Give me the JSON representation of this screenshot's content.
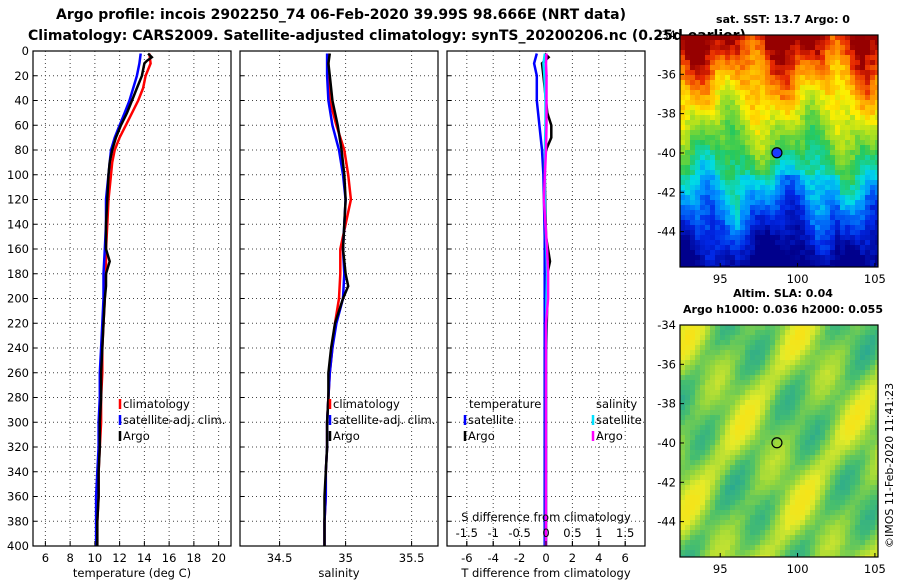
{
  "title": {
    "line1": "Argo profile: incois 2902250_74 06-Feb-2020 39.99S 98.666E (NRT data)",
    "line2": "Climatology: CARS2009. Satellite-adjusted climatology: synTS_20200206.nc (0.25d earlier)"
  },
  "colors": {
    "climatology": "#ff0000",
    "satellite": "#0000ff",
    "argo": "#000000",
    "salinity_satellite": "#00e0ff",
    "salinity_argo": "#ff00ff"
  },
  "chart_data": [
    {
      "id": "temperature",
      "type": "line",
      "xlabel": "temperature (deg C)",
      "ylabel": "depth",
      "xlim": [
        5,
        21
      ],
      "ylim": [
        400,
        0
      ],
      "xticks": [
        6,
        8,
        10,
        12,
        14,
        16,
        18,
        20
      ],
      "xtick_labels": [
        "6",
        "8",
        "10",
        "12",
        "14",
        "16",
        "18",
        "20"
      ],
      "yticks": [
        0,
        20,
        40,
        60,
        80,
        100,
        120,
        140,
        160,
        180,
        200,
        220,
        240,
        260,
        280,
        300,
        320,
        340,
        360,
        380,
        400
      ],
      "ytick_labels": [
        "0",
        "20",
        "40",
        "60",
        "80",
        "100",
        "120",
        "140",
        "160",
        "180",
        "200",
        "220",
        "240",
        "260",
        "280",
        "300",
        "320",
        "340",
        "360",
        "380",
        "400"
      ],
      "grid": true,
      "legend": [
        "climatology",
        "satellite-adj. clim.",
        "Argo"
      ],
      "series": [
        {
          "name": "climatology",
          "color": "#ff0000",
          "depth": [
            2,
            10,
            20,
            30,
            40,
            50,
            60,
            70,
            80,
            90,
            100,
            120,
            140,
            160,
            180,
            200,
            220,
            240,
            260,
            280,
            300,
            320,
            340,
            360,
            380,
            400
          ],
          "values": [
            14.4,
            14.5,
            14.1,
            13.9,
            13.5,
            13.0,
            12.5,
            12.0,
            11.6,
            11.4,
            11.3,
            11.1,
            11.0,
            10.9,
            10.9,
            10.8,
            10.7,
            10.6,
            10.6,
            10.5,
            10.5,
            10.4,
            10.3,
            10.3,
            10.2,
            10.2
          ]
        },
        {
          "name": "satellite-adj. clim.",
          "color": "#0000ff",
          "depth": [
            2,
            10,
            20,
            30,
            40,
            50,
            60,
            70,
            80,
            90,
            100,
            120,
            140,
            160,
            180,
            200,
            220,
            240,
            260,
            280,
            300,
            320,
            340,
            360,
            380,
            400
          ],
          "values": [
            13.7,
            13.6,
            13.4,
            13.1,
            12.8,
            12.4,
            12.0,
            11.6,
            11.3,
            11.2,
            11.1,
            10.9,
            10.9,
            10.8,
            10.7,
            10.7,
            10.6,
            10.5,
            10.4,
            10.4,
            10.3,
            10.3,
            10.2,
            10.1,
            10.1,
            10.1
          ]
        },
        {
          "name": "Argo",
          "color": "#000000",
          "depth": [
            2,
            5,
            8,
            10,
            20,
            30,
            40,
            50,
            60,
            70,
            80,
            90,
            100,
            120,
            140,
            160,
            170,
            180,
            190,
            200,
            220,
            240,
            260,
            280,
            300,
            320,
            340,
            360,
            380,
            400
          ],
          "values": [
            14.3,
            14.6,
            14.2,
            14.0,
            13.8,
            13.4,
            13.0,
            12.6,
            12.1,
            11.7,
            11.4,
            11.2,
            11.1,
            11.0,
            10.9,
            10.9,
            11.2,
            10.9,
            10.9,
            10.8,
            10.7,
            10.6,
            10.5,
            10.5,
            10.4,
            10.4,
            10.3,
            10.3,
            10.2,
            10.2
          ]
        }
      ]
    },
    {
      "id": "salinity",
      "type": "line",
      "xlabel": "salinity",
      "ylabel": "depth",
      "xlim": [
        34.2,
        35.7
      ],
      "ylim": [
        400,
        0
      ],
      "xticks": [
        34.5,
        35,
        35.5
      ],
      "xtick_labels": [
        "34.5",
        "35",
        "35.5"
      ],
      "grid": true,
      "legend": [
        "climatology",
        "satellite-adj. clim.",
        "Argo"
      ],
      "series": [
        {
          "name": "climatology",
          "color": "#ff0000",
          "depth": [
            2,
            20,
            40,
            60,
            80,
            100,
            120,
            140,
            160,
            180,
            200,
            220,
            240,
            260,
            280,
            300,
            320,
            340,
            360,
            380,
            400
          ],
          "values": [
            34.87,
            34.87,
            34.88,
            34.93,
            34.99,
            35.02,
            35.04,
            35.0,
            34.96,
            34.96,
            34.95,
            34.92,
            34.9,
            34.88,
            34.87,
            34.86,
            34.86,
            34.85,
            34.85,
            34.84,
            34.84
          ]
        },
        {
          "name": "satellite-adj. clim.",
          "color": "#0000ff",
          "depth": [
            2,
            20,
            40,
            60,
            80,
            100,
            120,
            140,
            160,
            180,
            200,
            220,
            240,
            260,
            280,
            300,
            320,
            340,
            360,
            380,
            400
          ],
          "values": [
            34.86,
            34.86,
            34.87,
            34.9,
            34.95,
            34.98,
            35.0,
            34.99,
            34.98,
            34.99,
            34.98,
            34.93,
            34.9,
            34.88,
            34.87,
            34.86,
            34.86,
            34.85,
            34.85,
            34.84,
            34.84
          ]
        },
        {
          "name": "Argo",
          "color": "#000000",
          "depth": [
            2,
            10,
            20,
            40,
            60,
            80,
            100,
            120,
            140,
            160,
            180,
            190,
            200,
            220,
            240,
            260,
            280,
            300,
            320,
            340,
            360,
            380,
            400
          ],
          "values": [
            34.88,
            34.87,
            34.88,
            34.9,
            34.94,
            34.97,
            34.99,
            35.0,
            34.99,
            34.98,
            35.0,
            35.02,
            34.98,
            34.92,
            34.89,
            34.87,
            34.87,
            34.86,
            34.86,
            34.85,
            34.84,
            34.84,
            34.84
          ]
        }
      ]
    },
    {
      "id": "difference",
      "type": "line",
      "xlabel": "T difference from climatology",
      "xlabel_top": "S difference from climatology",
      "ylabel": "depth",
      "xlim": [
        -7.5,
        7.5
      ],
      "ylim": [
        400,
        0
      ],
      "xticks": [
        -6,
        -4,
        -2,
        0,
        2,
        4,
        6
      ],
      "xtick_labels": [
        "-6",
        "-4",
        "-2",
        "0",
        "2",
        "4",
        "6"
      ],
      "sticks": [
        -1.5,
        -1,
        -0.5,
        0,
        0.5,
        1,
        1.5
      ],
      "stick_labels": [
        "-1.5",
        "-1",
        "-0.5",
        "0",
        "0.5",
        "1",
        "1.5"
      ],
      "grid": true,
      "legend": {
        "temperature_header": "temperature",
        "salinity_header": "salinity",
        "temperature": [
          "satellite",
          "Argo"
        ],
        "salinity": [
          "satellite",
          "Argo"
        ]
      },
      "series": [
        {
          "name": "temperature satellite",
          "color": "#0000ff",
          "depth": [
            2,
            10,
            20,
            40,
            60,
            80,
            100,
            150,
            200,
            300,
            400
          ],
          "values": [
            -0.7,
            -0.9,
            -0.7,
            -0.7,
            -0.5,
            -0.3,
            -0.2,
            -0.1,
            -0.1,
            -0.1,
            -0.1
          ]
        },
        {
          "name": "temperature Argo",
          "color": "#000000",
          "depth": [
            2,
            5,
            10,
            20,
            30,
            40,
            50,
            60,
            70,
            80,
            90,
            100,
            150,
            170,
            180,
            200,
            250,
            300,
            350,
            400
          ],
          "values": [
            -0.1,
            0.2,
            -0.3,
            -0.2,
            -0.1,
            0.0,
            0.1,
            0.4,
            0.4,
            0.0,
            -0.1,
            -0.1,
            0.0,
            0.3,
            0.1,
            0.1,
            0.0,
            0.0,
            0.0,
            0.0
          ]
        },
        {
          "name": "salinity satellite",
          "color": "#00e0ff",
          "depth": [
            2,
            10,
            20,
            40,
            60,
            80,
            100,
            120,
            140,
            160,
            180,
            200,
            250,
            300,
            400
          ],
          "values": [
            -0.02,
            -0.05,
            -0.03,
            -0.01,
            -0.01,
            -0.02,
            -0.02,
            -0.02,
            -0.01,
            0.01,
            0.02,
            0.01,
            0.0,
            0.0,
            0.0
          ]
        },
        {
          "name": "salinity Argo",
          "color": "#ff00ff",
          "depth": [
            2,
            10,
            20,
            40,
            60,
            80,
            100,
            120,
            140,
            160,
            180,
            200,
            220,
            250,
            300,
            350,
            400
          ],
          "values": [
            0.01,
            0.0,
            0.01,
            0.01,
            0.01,
            0.0,
            -0.02,
            -0.04,
            -0.01,
            0.02,
            0.04,
            0.04,
            0.0,
            0.0,
            0.0,
            0.0,
            0.0
          ]
        }
      ]
    },
    {
      "id": "sst_map",
      "type": "heatmap",
      "title": "sat. SST: 13.7 Argo: 0",
      "xlim": [
        92.4,
        105.2
      ],
      "ylim": [
        -45.8,
        -34
      ],
      "xticks": [
        95,
        100,
        105
      ],
      "xtick_labels": [
        "95",
        "100",
        "105"
      ],
      "yticks": [
        -34,
        -36,
        -38,
        -40,
        -42,
        -44
      ],
      "ytick_labels": [
        "-34",
        "-36",
        "-38",
        "-40",
        "-42",
        "-44"
      ],
      "argo_position": {
        "lon": 98.666,
        "lat": -39.99
      }
    },
    {
      "id": "sla_map",
      "type": "heatmap",
      "title": "Altim. SLA: 0.04",
      "subtitle": "Argo h1000: 0.036 h2000: 0.055",
      "xlim": [
        92.4,
        105.2
      ],
      "ylim": [
        -45.8,
        -34
      ],
      "xticks": [
        95,
        100,
        105
      ],
      "xtick_labels": [
        "95",
        "100",
        "105"
      ],
      "yticks": [
        -34,
        -36,
        -38,
        -40,
        -42,
        -44
      ],
      "ytick_labels": [
        "-34",
        "-36",
        "-38",
        "-40",
        "-42",
        "-44"
      ],
      "argo_position": {
        "lon": 98.666,
        "lat": -39.99
      }
    }
  ],
  "watermark": "©IMOS 11-Feb-2020 11:41:23"
}
